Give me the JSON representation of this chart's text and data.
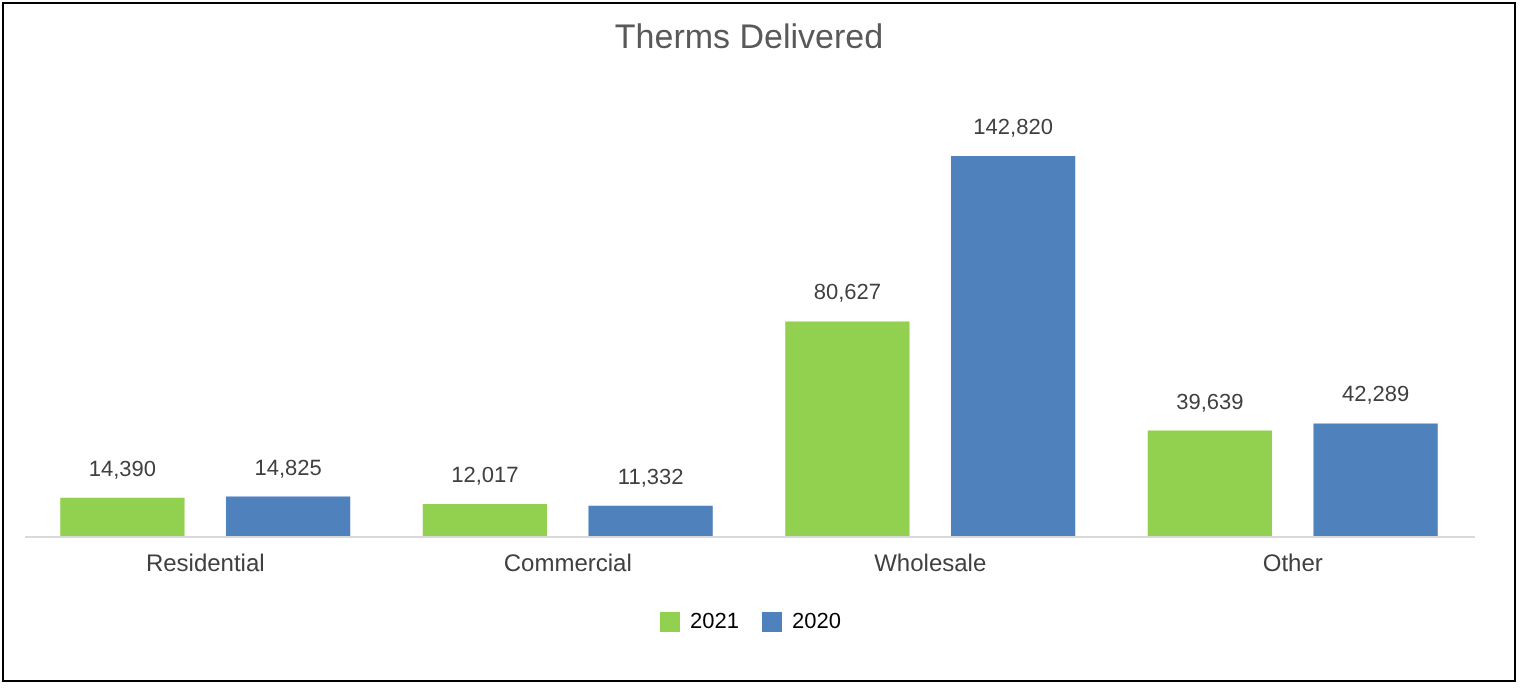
{
  "chart_data": {
    "type": "bar",
    "title": "Therms Delivered",
    "categories": [
      "Residential",
      "Commercial",
      "Wholesale",
      "Other"
    ],
    "series": [
      {
        "name": "2021",
        "color": "#92d050",
        "values": [
          14390,
          12017,
          80627,
          39639
        ],
        "value_labels": [
          "14,390",
          "12,017",
          "80,627",
          "39,639"
        ]
      },
      {
        "name": "2020",
        "color": "#4f81bd",
        "values": [
          14825,
          11332,
          142820,
          42289
        ],
        "value_labels": [
          "14,825",
          "11,332",
          "142,820",
          "42,289"
        ]
      }
    ],
    "legend": "bottom",
    "grid": false,
    "tick_labels": "x"
  }
}
